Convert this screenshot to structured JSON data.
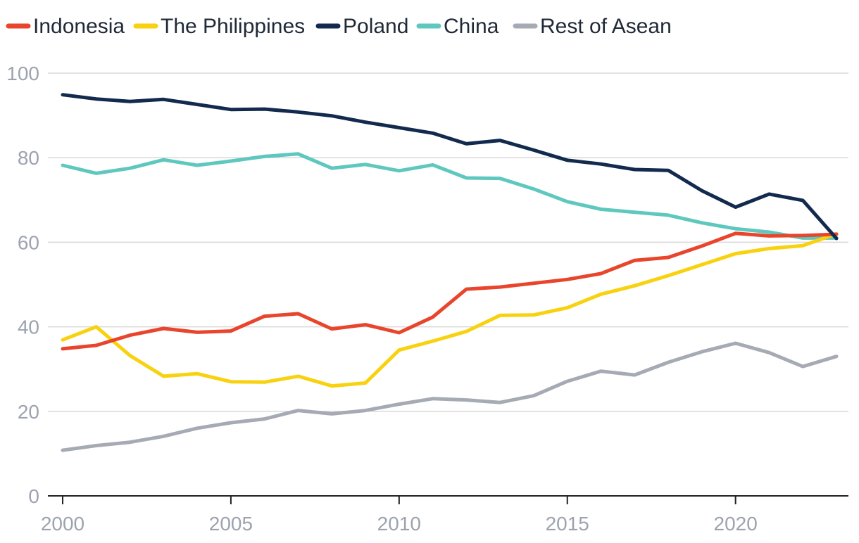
{
  "chart_data": {
    "type": "line",
    "title": "",
    "xlabel": "",
    "ylabel": "",
    "ylim": [
      0,
      100
    ],
    "xlim": [
      2000,
      2023
    ],
    "y_ticks": [
      0,
      20,
      40,
      60,
      80,
      100
    ],
    "x_ticks": [
      2000,
      2005,
      2010,
      2015,
      2020
    ],
    "y_tick_labels": [
      "0",
      "20",
      "40",
      "60",
      "80",
      "100"
    ],
    "x_tick_labels": [
      "2000",
      "2005",
      "2010",
      "2015",
      "2020"
    ],
    "grid": true,
    "legend_position": "top-left",
    "x": [
      2000,
      2001,
      2002,
      2003,
      2004,
      2005,
      2006,
      2007,
      2008,
      2009,
      2010,
      2011,
      2012,
      2013,
      2014,
      2015,
      2016,
      2017,
      2018,
      2019,
      2020,
      2021,
      2022,
      2023
    ],
    "series": [
      {
        "name": "Indonesia",
        "color": "#e8452c",
        "values": [
          34.8,
          35.6,
          38.0,
          39.6,
          38.7,
          39.0,
          42.5,
          43.1,
          39.5,
          40.5,
          38.6,
          42.3,
          48.9,
          49.4,
          50.3,
          51.2,
          52.6,
          55.7,
          56.4,
          59.1,
          62.1,
          61.5,
          61.6,
          61.9
        ]
      },
      {
        "name": "The Philippines",
        "color": "#f8d20f",
        "values": [
          36.9,
          40.0,
          33.2,
          28.3,
          28.9,
          27.0,
          26.9,
          28.3,
          26.0,
          26.7,
          34.5,
          36.6,
          38.9,
          42.7,
          42.8,
          44.5,
          47.7,
          49.7,
          52.1,
          54.7,
          57.3,
          58.5,
          59.2,
          62.0
        ]
      },
      {
        "name": "Poland",
        "color": "#122a4e",
        "values": [
          94.9,
          93.9,
          93.3,
          93.8,
          92.6,
          91.4,
          91.5,
          90.8,
          89.9,
          88.4,
          87.1,
          85.8,
          83.3,
          84.1,
          81.8,
          79.4,
          78.5,
          77.2,
          77.0,
          72.2,
          68.3,
          71.4,
          69.9,
          60.9
        ]
      },
      {
        "name": "China",
        "color": "#5fc8be",
        "values": [
          78.2,
          76.3,
          77.5,
          79.5,
          78.2,
          79.2,
          80.3,
          80.9,
          77.5,
          78.4,
          76.9,
          78.3,
          75.2,
          75.1,
          72.6,
          69.6,
          67.8,
          67.1,
          66.4,
          64.6,
          63.2,
          62.4,
          61.0,
          61.0
        ]
      },
      {
        "name": "Rest of Asean",
        "color": "#a5aab4",
        "values": [
          10.8,
          11.9,
          12.7,
          14.1,
          16.0,
          17.3,
          18.2,
          20.2,
          19.4,
          20.2,
          21.7,
          23.0,
          22.7,
          22.1,
          23.7,
          27.1,
          29.5,
          28.6,
          31.6,
          34.1,
          36.1,
          33.9,
          30.6,
          33.0
        ]
      }
    ]
  }
}
